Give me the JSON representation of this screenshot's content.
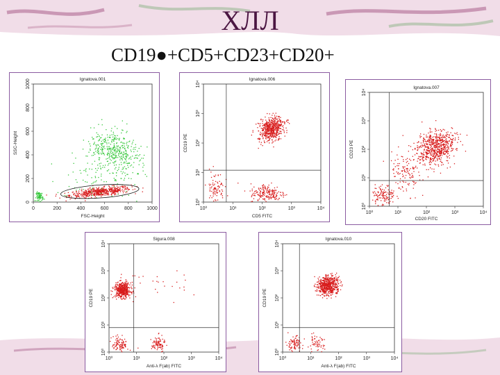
{
  "slide": {
    "title": "ХЛЛ",
    "subtitle": "CD19●+CD5+CD23+CD20+"
  },
  "chart_data": [
    {
      "type": "scatter",
      "panel_title": "Ignatova.001",
      "xlabel": "FSC-Height",
      "ylabel": "SSC-Height",
      "xlim": [
        0,
        1000
      ],
      "ylim": [
        0,
        1000
      ],
      "x_ticks": [
        "0",
        "200",
        "400",
        "600",
        "800",
        "1000"
      ],
      "y_ticks": [
        "0",
        "200",
        "400",
        "600",
        "800",
        "1000"
      ],
      "log": false,
      "gate": {
        "shape": "ellipse",
        "cx": 560,
        "cy": 90,
        "rx": 330,
        "ry": 55
      },
      "populations": [
        {
          "color": "#d81b1b",
          "cx": 560,
          "cy": 90,
          "sx": 130,
          "sy": 18,
          "angle": 6,
          "n": 500
        },
        {
          "color": "#35c73a",
          "cx": 680,
          "cy": 430,
          "sx": 80,
          "sy": 120,
          "angle": 55,
          "n": 380
        },
        {
          "color": "#35c73a",
          "cx": 600,
          "cy": 250,
          "sx": 220,
          "sy": 130,
          "angle": 30,
          "n": 140
        },
        {
          "color": "#35c73a",
          "cx": 50,
          "cy": 50,
          "sx": 15,
          "sy": 20,
          "angle": 0,
          "n": 80
        }
      ]
    },
    {
      "type": "scatter",
      "panel_title": "Ignatova.006",
      "xlabel": "CD5 FITC",
      "ylabel": "CD19 PE",
      "xlim": [
        1,
        10000
      ],
      "ylim": [
        1,
        10000
      ],
      "x_ticks": [
        "10⁰",
        "10¹",
        "10²",
        "10³",
        "10⁴"
      ],
      "y_ticks": [
        "10⁰",
        "10¹",
        "10²",
        "10³",
        "10⁴"
      ],
      "log": true,
      "quadrant": {
        "x": 6,
        "y": 12
      },
      "populations": [
        {
          "color": "#d81b1b",
          "cx": 200,
          "cy": 300,
          "sx": 0.22,
          "sy": 0.18,
          "angle": 35,
          "n": 550
        },
        {
          "color": "#d81b1b",
          "cx": 150,
          "cy": 2,
          "sx": 0.3,
          "sy": 0.17,
          "angle": 0,
          "n": 200
        },
        {
          "color": "#d81b1b",
          "cx": 2.5,
          "cy": 3,
          "sx": 0.15,
          "sy": 0.3,
          "angle": 0,
          "n": 90
        }
      ]
    },
    {
      "type": "scatter",
      "panel_title": "Ignatova.007",
      "xlabel": "CD20 FITC",
      "ylabel": "CD23 PE",
      "xlim": [
        1,
        10000
      ],
      "ylim": [
        1,
        10000
      ],
      "x_ticks": [
        "10⁰",
        "10¹",
        "10²",
        "10³",
        "10⁴"
      ],
      "y_ticks": [
        "10⁰",
        "10¹",
        "10²",
        "10³",
        "10⁴"
      ],
      "log": true,
      "quadrant": {
        "x": 5,
        "y": 8
      },
      "populations": [
        {
          "color": "#d81b1b",
          "cx": 200,
          "cy": 120,
          "sx": 0.35,
          "sy": 0.28,
          "angle": 35,
          "n": 650
        },
        {
          "color": "#d81b1b",
          "cx": 3,
          "cy": 2.5,
          "sx": 0.2,
          "sy": 0.18,
          "angle": 0,
          "n": 120
        },
        {
          "color": "#d81b1b",
          "cx": 20,
          "cy": 15,
          "sx": 0.25,
          "sy": 0.35,
          "angle": 30,
          "n": 120
        }
      ]
    },
    {
      "type": "scatter",
      "panel_title": "Sigura.008",
      "xlabel": "Anti-λ F(ab) FITC",
      "ylabel": "CD19 PE",
      "xlim": [
        1,
        10000
      ],
      "ylim": [
        1,
        10000
      ],
      "x_ticks": [
        "10⁰",
        "10¹",
        "10²",
        "10³",
        "10⁴"
      ],
      "y_ticks": [
        "10⁰",
        "10¹",
        "10²",
        "10³",
        "10⁴"
      ],
      "log": true,
      "quadrant": {
        "x": 8,
        "y": 8
      },
      "populations": [
        {
          "color": "#d81b1b",
          "cx": 3,
          "cy": 200,
          "sx": 0.15,
          "sy": 0.14,
          "angle": 0,
          "n": 450
        },
        {
          "color": "#d81b1b",
          "cx": 2.5,
          "cy": 2,
          "sx": 0.15,
          "sy": 0.15,
          "angle": 0,
          "n": 100
        },
        {
          "color": "#d81b1b",
          "cx": 60,
          "cy": 2,
          "sx": 0.12,
          "sy": 0.15,
          "angle": 0,
          "n": 90
        },
        {
          "color": "#d81b1b",
          "cx": 50,
          "cy": 300,
          "sx": 0.6,
          "sy": 0.3,
          "angle": 0,
          "n": 25
        }
      ]
    },
    {
      "type": "scatter",
      "panel_title": "Ignatova.010",
      "xlabel": "Anti-λ F(ab) FITC",
      "ylabel": "CD19 PE",
      "xlim": [
        1,
        10000
      ],
      "ylim": [
        1,
        10000
      ],
      "x_ticks": [
        "10⁰",
        "10¹",
        "10²",
        "10³",
        "10⁴"
      ],
      "y_ticks": [
        "10⁰",
        "10¹",
        "10²",
        "10³",
        "10⁴"
      ],
      "log": true,
      "quadrant": {
        "x": 4,
        "y": 8
      },
      "populations": [
        {
          "color": "#d81b1b",
          "cx": 40,
          "cy": 300,
          "sx": 0.2,
          "sy": 0.17,
          "angle": 30,
          "n": 550
        },
        {
          "color": "#d81b1b",
          "cx": 2.5,
          "cy": 2,
          "sx": 0.15,
          "sy": 0.15,
          "angle": 0,
          "n": 90
        },
        {
          "color": "#d81b1b",
          "cx": 15,
          "cy": 2,
          "sx": 0.15,
          "sy": 0.15,
          "angle": 0,
          "n": 60
        }
      ]
    }
  ]
}
